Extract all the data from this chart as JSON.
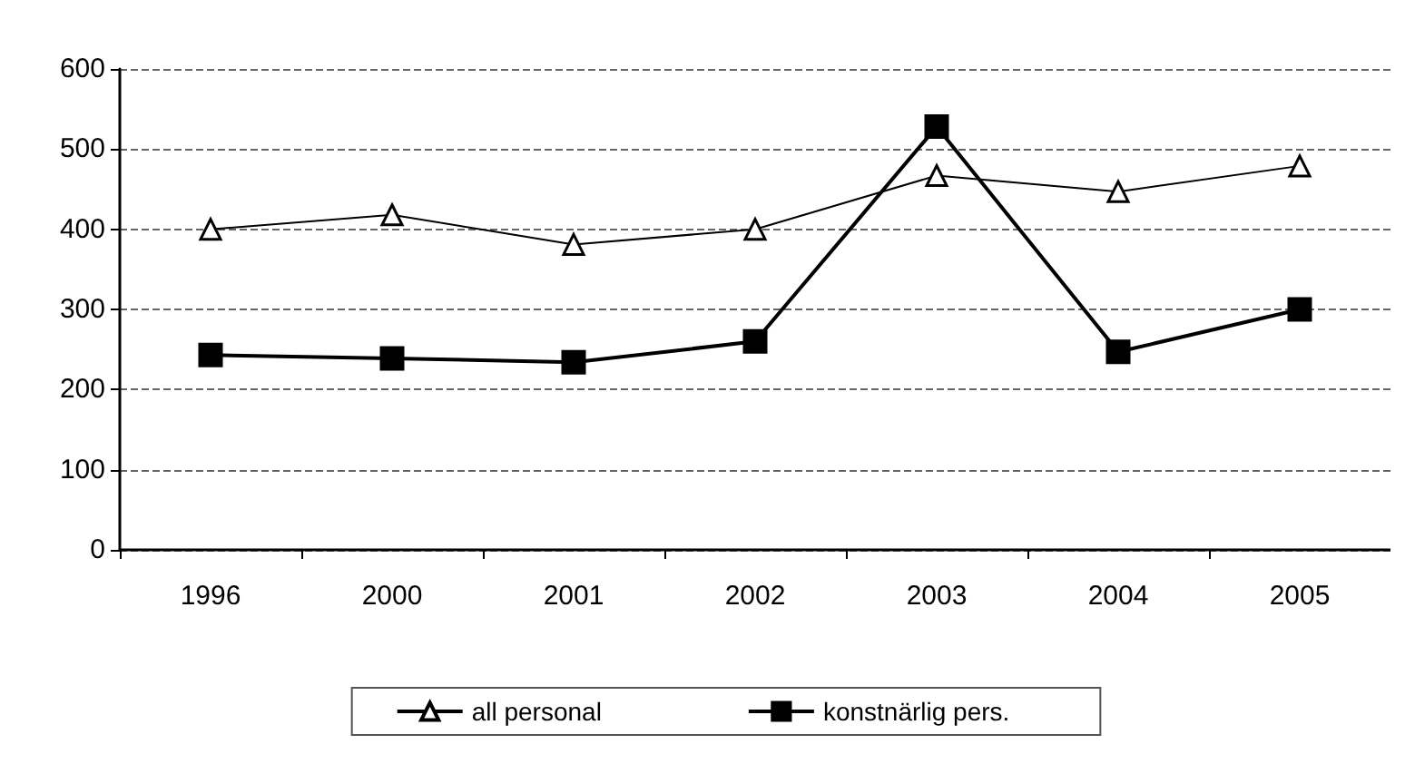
{
  "chart_data": {
    "type": "line",
    "categories": [
      "1996",
      "2000",
      "2001",
      "2002",
      "2003",
      "2004",
      "2005"
    ],
    "series": [
      {
        "name": "all personal",
        "color": "#000000",
        "marker": "triangle",
        "values": [
          400,
          418,
          381,
          400,
          467,
          447,
          479
        ]
      },
      {
        "name": "konstnärlig pers.",
        "color": "#000000",
        "marker": "square",
        "values": [
          243,
          239,
          234,
          260,
          528,
          247,
          300
        ]
      }
    ],
    "ylim": [
      0,
      600
    ],
    "yticks": [
      0,
      100,
      200,
      300,
      400,
      500,
      600
    ],
    "grid": "y",
    "legend": "bottom"
  }
}
